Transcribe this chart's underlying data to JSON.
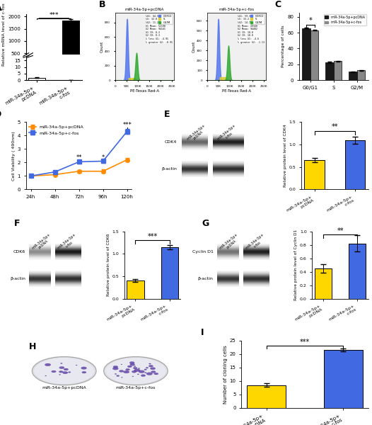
{
  "panel_A": {
    "values": [
      2.0,
      1850.0
    ],
    "bar_colors": [
      "white",
      "black"
    ],
    "ylabel": "Relative mRNA level of c-fos",
    "significance": "***",
    "error_bars": [
      0.3,
      55.0
    ],
    "lower_yticks": [
      0,
      5,
      10,
      15
    ],
    "upper_yticks": [
      500,
      1000,
      1500,
      2000
    ],
    "lower_ylim": [
      0,
      18
    ],
    "upper_ylim": [
      450,
      2100
    ]
  },
  "panel_C": {
    "groups": [
      "G0/G1",
      "S",
      "G2/M"
    ],
    "pcDNA_values": [
      65.5,
      22.5,
      10.5
    ],
    "cfos_values": [
      63.0,
      24.0,
      12.5
    ],
    "pcDNA_errors": [
      0.5,
      0.5,
      0.4
    ],
    "cfos_errors": [
      0.6,
      0.6,
      0.5
    ],
    "ylabel": "Percentage of cells",
    "ylim": [
      0,
      85
    ],
    "yticks": [
      0,
      20,
      40,
      60,
      80
    ],
    "significance_G0G1": "*",
    "bar_color_pcDNA": "#1a1a1a",
    "bar_color_cfos": "#888888"
  },
  "panel_D": {
    "timepoints": [
      "24h",
      "48h",
      "72h",
      "96h",
      "120h"
    ],
    "pcDNA_values": [
      1.0,
      1.1,
      1.35,
      1.35,
      2.2
    ],
    "cfos_values": [
      1.0,
      1.3,
      2.05,
      2.1,
      4.3
    ],
    "pcDNA_errors": [
      0.05,
      0.08,
      0.1,
      0.12,
      0.15
    ],
    "cfos_errors": [
      0.05,
      0.1,
      0.12,
      0.15,
      0.2
    ],
    "ylabel": "Cell Viability ( 490nm)",
    "ylim": [
      0,
      5
    ],
    "yticks": [
      0,
      1,
      2,
      3,
      4,
      5
    ],
    "color_pcDNA": "#FF8C00",
    "color_cfos": "#4169E1",
    "sig_72h": "**",
    "sig_96h": "*",
    "sig_120h": "***"
  },
  "panel_E_bar": {
    "values": [
      0.65,
      1.1
    ],
    "errors": [
      0.05,
      0.08
    ],
    "bar_colors": [
      "#FFD700",
      "#4169E1"
    ],
    "ylabel": "Relative protein level of CDK4",
    "ylim": [
      0,
      1.5
    ],
    "yticks": [
      0.0,
      0.5,
      1.0,
      1.5
    ],
    "significance": "**"
  },
  "panel_F_bar": {
    "values": [
      0.4,
      1.15
    ],
    "errors": [
      0.03,
      0.05
    ],
    "bar_colors": [
      "#FFD700",
      "#4169E1"
    ],
    "ylabel": "Relative protein level of CDK6",
    "ylim": [
      0,
      1.5
    ],
    "yticks": [
      0.0,
      0.5,
      1.0,
      1.5
    ],
    "significance": "***"
  },
  "panel_G_bar": {
    "values": [
      0.45,
      0.82
    ],
    "errors": [
      0.06,
      0.12
    ],
    "bar_colors": [
      "#FFD700",
      "#4169E1"
    ],
    "ylabel": "Relative protein level of Cyclin D1",
    "ylim": [
      0,
      1.0
    ],
    "yticks": [
      0.0,
      0.2,
      0.4,
      0.6,
      0.8,
      1.0
    ],
    "significance": "**"
  },
  "panel_I": {
    "values": [
      8.5,
      21.5
    ],
    "errors": [
      0.6,
      0.5
    ],
    "bar_colors": [
      "#FFD700",
      "#4169E1"
    ],
    "ylabel": "Number of cloning cells",
    "ylim": [
      0,
      25
    ],
    "yticks": [
      0,
      5,
      10,
      15,
      20,
      25
    ],
    "significance": "***"
  }
}
